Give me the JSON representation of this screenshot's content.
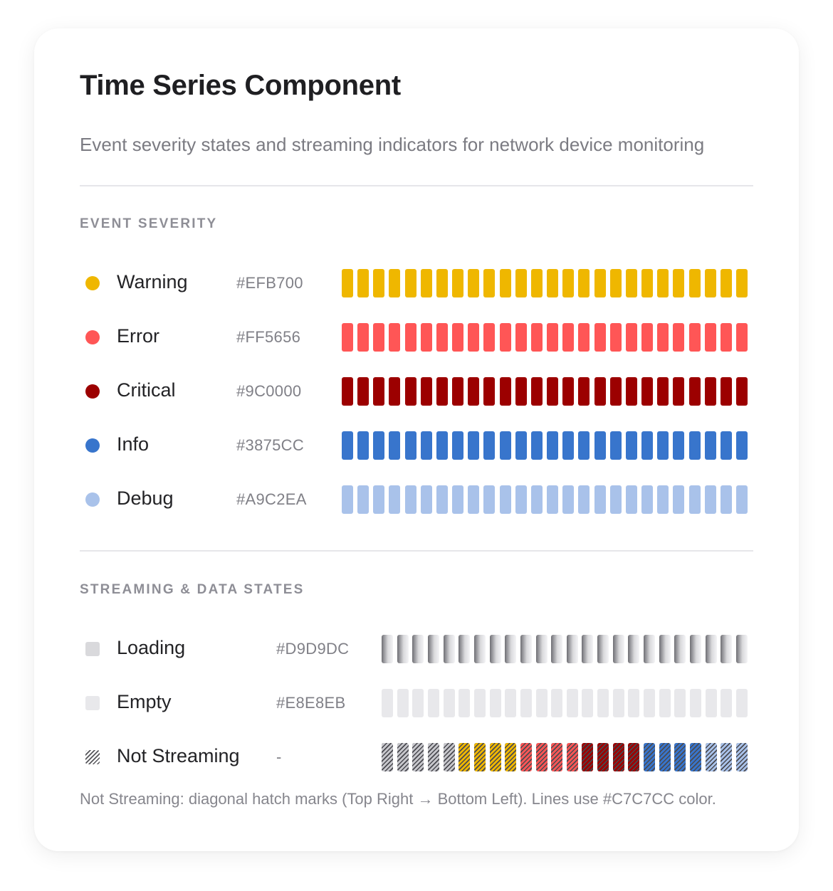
{
  "title": "Time Series Component",
  "subtitle": "Event severity states and streaming indicators for network device monitoring",
  "sections": {
    "severity": {
      "label": "EVENT SEVERITY"
    },
    "streaming": {
      "label": "STREAMING & DATA STATES"
    }
  },
  "severity_rows": [
    {
      "label": "Warning",
      "hex": "#EFB700",
      "color": "#EFB700",
      "segments": 26
    },
    {
      "label": "Error",
      "hex": "#FF5656",
      "color": "#FF5656",
      "segments": 26
    },
    {
      "label": "Critical",
      "hex": "#9C0000",
      "color": "#9C0000",
      "segments": 26
    },
    {
      "label": "Info",
      "hex": "#3875CC",
      "color": "#3875CC",
      "segments": 26
    },
    {
      "label": "Debug",
      "hex": "#A9C2EA",
      "color": "#A9C2EA",
      "segments": 26
    }
  ],
  "stream_rows": [
    {
      "label": "Loading",
      "hex": "#D9D9DC",
      "color": "#D9D9DC",
      "state": "loading",
      "segments": 24
    },
    {
      "label": "Empty",
      "hex": "#E8E8EB",
      "color": "#E8E8EB",
      "state": "empty",
      "segments": 24
    },
    {
      "label": "Not Streaming",
      "hex": "-",
      "color": "#C7C7CC",
      "state": "not-streaming",
      "segments": 24,
      "segment_colors": [
        "#C7C7CC",
        "#C7C7CC",
        "#C7C7CC",
        "#C7C7CC",
        "#C7C7CC",
        "#EFB700",
        "#EFB700",
        "#EFB700",
        "#EFB700",
        "#FF5656",
        "#FF5656",
        "#FF5656",
        "#FF5656",
        "#9C0000",
        "#9C0000",
        "#9C0000",
        "#9C0000",
        "#3875CC",
        "#3875CC",
        "#3875CC",
        "#3875CC",
        "#A9C2EA",
        "#A9C2EA",
        "#A9C2EA"
      ]
    }
  ],
  "footnote": "Not Streaming: diagonal hatch marks (Top Right → Bottom Left). Lines use #C7C7CC color."
}
